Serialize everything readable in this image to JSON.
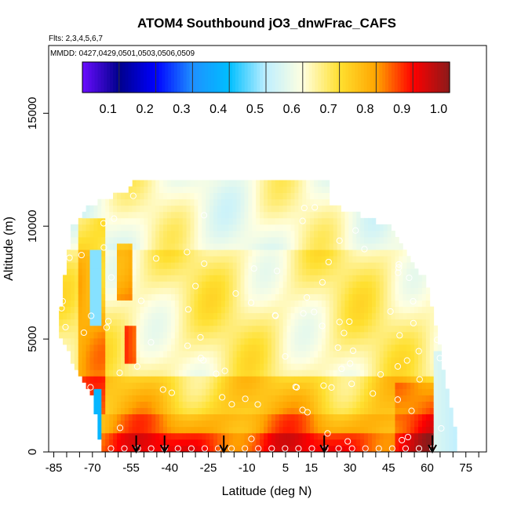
{
  "chart_data": {
    "type": "heatmap",
    "title": "ATOM4 Southbound jO3_dnwFrac_CAFS",
    "flights_note": "Flts: 2,3,4,5,6,7",
    "dates_note": "MMDD: 0427,0429,0501,0503,0506,0509",
    "xlabel": "Latitude (deg N)",
    "ylabel": "Altitude (m)",
    "xlim": [
      -87,
      83
    ],
    "ylim": [
      0,
      18000
    ],
    "x_ticks": [
      -85,
      -70,
      -55,
      -40,
      -25,
      -10,
      5,
      15,
      30,
      45,
      60,
      75
    ],
    "x_tick_labels": [
      "-85",
      "-70",
      "-55",
      "-40",
      "-25",
      "-10",
      "5",
      "15",
      "30",
      "45",
      "60",
      "75"
    ],
    "y_ticks": [
      0,
      5000,
      10000,
      15000
    ],
    "y_tick_labels": [
      "0",
      "5000",
      "10000",
      "15000"
    ],
    "colorbar": {
      "range": [
        0.0,
        1.0
      ],
      "tick_values": [
        0.1,
        0.2,
        0.3,
        0.4,
        0.5,
        0.6,
        0.7,
        0.8,
        0.9,
        1.0
      ],
      "tick_labels": [
        "0.1",
        "0.2",
        "0.3",
        "0.4",
        "0.5",
        "0.6",
        "0.7",
        "0.8",
        "0.9",
        "1.0"
      ],
      "color_stops": [
        "#6a0dff",
        "#00008b",
        "#0000ff",
        "#1e90ff",
        "#00bfff",
        "#bfefff",
        "#ffffe0",
        "#ffe030",
        "#ffa500",
        "#ff0000",
        "#8b1a1a"
      ]
    },
    "arrow_latitudes": [
      -53,
      -42,
      -19,
      20,
      62
    ],
    "grid": false
  }
}
